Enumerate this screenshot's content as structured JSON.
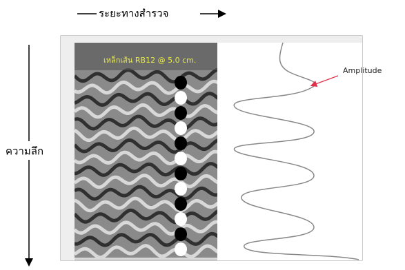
{
  "labels": {
    "distance": "ระยะทางสำรวจ",
    "depth": "ความลึก",
    "amplitude": "Amplitude",
    "rebar": "เหล็กเส้น RB12 @ 5.0 cm."
  }
}
